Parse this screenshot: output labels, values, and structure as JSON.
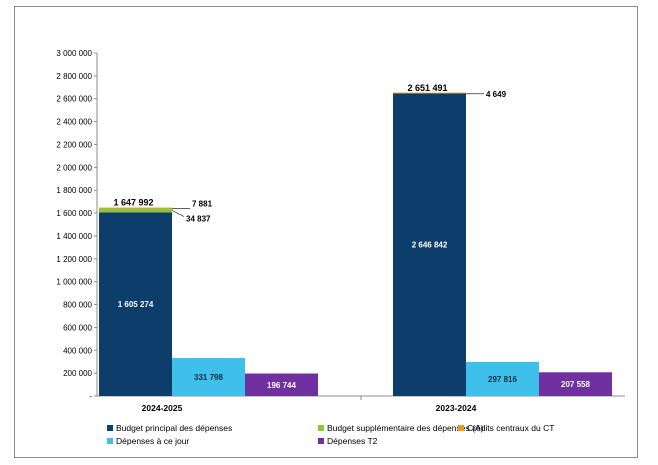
{
  "chart_data": {
    "type": "bar",
    "stacked_first_bar": true,
    "categories": [
      "2024-2025",
      "2023-2024"
    ],
    "ylim": [
      0,
      3000000
    ],
    "yticks": [
      {
        "value": 3000000,
        "label": "3 000 000"
      },
      {
        "value": 2800000,
        "label": "2 800 000"
      },
      {
        "value": 2600000,
        "label": "2 600 000"
      },
      {
        "value": 2400000,
        "label": "2 400 000"
      },
      {
        "value": 2200000,
        "label": "2 200 000"
      },
      {
        "value": 2000000,
        "label": "2 000 000"
      },
      {
        "value": 1800000,
        "label": "1 800 000"
      },
      {
        "value": 1600000,
        "label": "1 600 000"
      },
      {
        "value": 1400000,
        "label": "1 400 000"
      },
      {
        "value": 1200000,
        "label": "1 200 000"
      },
      {
        "value": 1000000,
        "label": "1 000 000"
      },
      {
        "value": 800000,
        "label": "800 000"
      },
      {
        "value": 600000,
        "label": "600 000"
      },
      {
        "value": 400000,
        "label": "400 000"
      },
      {
        "value": 200000,
        "label": "200 000"
      },
      {
        "value": 0,
        "label": "-"
      }
    ],
    "series": [
      {
        "name": "Budget principal des dépenses",
        "color": "#0d3d6b",
        "values": [
          1605274,
          2646842
        ],
        "labels": [
          "1 605 274",
          "2 646 842"
        ]
      },
      {
        "name": "Budget supplémentaire des dépenses (A)",
        "color": "#8dc63f",
        "values": [
          34837,
          0
        ],
        "labels": [
          "34 837",
          ""
        ]
      },
      {
        "name": "Crédits centraux du CT",
        "color": "#f7941d",
        "values": [
          7881,
          4649
        ],
        "labels": [
          "7 881",
          "4 649"
        ]
      },
      {
        "name": "Dépenses à ce jour",
        "color": "#3fc0ea",
        "values": [
          331798,
          297816
        ],
        "labels": [
          "331 798",
          "297 816"
        ]
      },
      {
        "name": "Dépenses T2",
        "color": "#7030a0",
        "values": [
          196744,
          207558
        ],
        "labels": [
          "196 744",
          "207 558"
        ]
      }
    ],
    "totals": [
      {
        "value": 1647992,
        "label": "1 647 992"
      },
      {
        "value": 2651491,
        "label": "2 651 491"
      }
    ],
    "legend_position": "bottom",
    "grid": false
  }
}
